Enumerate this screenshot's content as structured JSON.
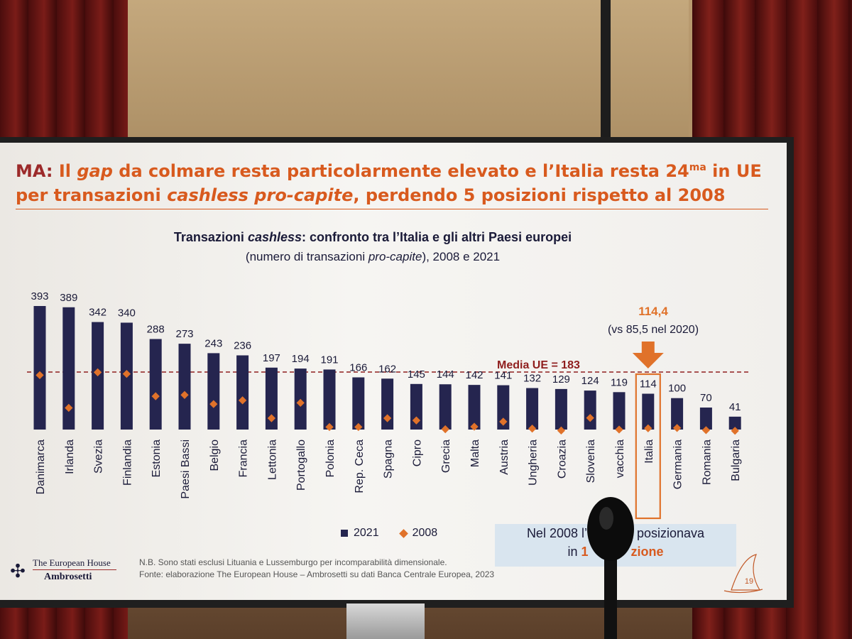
{
  "slide": {
    "title_prefix": "MA:",
    "title_part1": " Il ",
    "title_gap": "gap",
    "title_part2": " da colmare resta particolarmente elevato e l’Italia resta 24",
    "title_sup": "ma",
    "title_part3": " in UE per transazioni ",
    "title_cashless": "cashless pro-capite",
    "title_part4": ", perdendo 5 posizioni rispetto al 2008",
    "page_number": "19",
    "callout_line1": "Nel 2008 l’",
    "callout_line1b": "posizionava",
    "callout_line2": "in",
    "callout_line2b": "1",
    "callout_line2c": "zione",
    "note_line1": "N.B. Sono stati esclusi Lituania e Lussemburgo per incomparabilità dimensionale.",
    "note_line2": "Fonte: elaborazione The European House – Ambrosetti su dati Banca Centrale Europea, 2023",
    "logo_line1": "The European House",
    "logo_line2": "Ambrosetti",
    "accent_color": "#d85a1e"
  },
  "chart_data": {
    "type": "bar",
    "title_a": "Transazioni ",
    "title_b": "cashless",
    "title_c": ": confronto tra l’Italia e gli altri Paesi europei",
    "subtitle_a": "(numero di transazioni ",
    "subtitle_b": "pro-capite",
    "subtitle_c": "), 2008 e 2021",
    "categories": [
      "Danimarca",
      "Irlanda",
      "Svezia",
      "Finlandia",
      "Estonia",
      "Paesi Bassi",
      "Belgio",
      "Francia",
      "Lettonia",
      "Portogallo",
      "Polonia",
      "Rep. Ceca",
      "Spagna",
      "Cipro",
      "Grecia",
      "Malta",
      "Austria",
      "Ungheria",
      "Croazia",
      "Slovenia",
      "vacchia",
      "Italia",
      "Germania",
      "Romania",
      "Bulgaria"
    ],
    "value_labels": [
      "393",
      "389",
      "342",
      "340",
      "288",
      "273",
      "243",
      "236",
      "197",
      "194",
      "191",
      "166",
      "162",
      "145",
      "144",
      "142",
      "141",
      "132",
      "129",
      "124",
      "119",
      "114",
      "100",
      "70",
      "41"
    ],
    "series": [
      {
        "name": "2021",
        "color": "#25254f",
        "values": [
          393,
          389,
          342,
          340,
          288,
          273,
          243,
          236,
          197,
          194,
          191,
          166,
          162,
          145,
          144,
          142,
          141,
          132,
          129,
          124,
          119,
          114,
          100,
          70,
          41
        ]
      },
      {
        "name": "2008",
        "color": "#e0722a",
        "values": [
          173,
          69,
          182,
          177,
          106,
          110,
          81,
          93,
          36,
          85,
          8,
          8,
          36,
          29,
          1,
          9,
          25,
          3,
          -3,
          37,
          0,
          4,
          5,
          -2,
          -4
        ]
      }
    ],
    "ylim": [
      -10,
      400
    ],
    "reference_line": {
      "label": "Media UE = 183",
      "value": 183,
      "color": "#8f1e1e"
    },
    "highlight": {
      "category": "Italia",
      "value_label": "114,4",
      "note": "(vs 85,5 nel 2020)",
      "color": "#e0722a"
    }
  }
}
